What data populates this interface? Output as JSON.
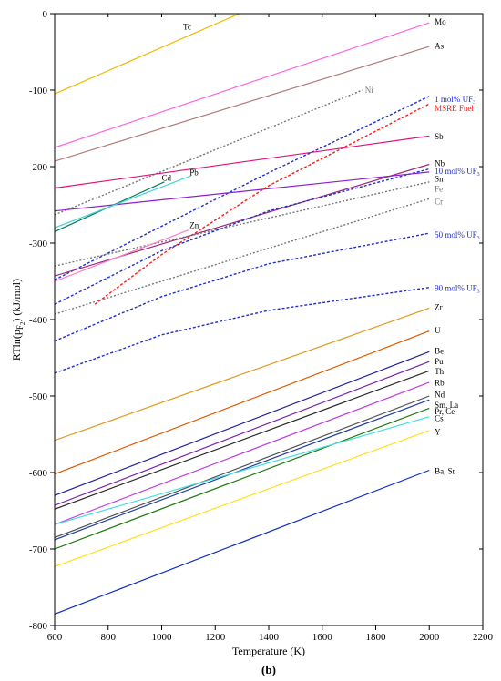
{
  "panel_label": "(b)",
  "chart_data": {
    "type": "line",
    "xlabel": "Temperature (K)",
    "ylabel": "RTln(pF2) (kJ/mol)",
    "xlim": [
      600,
      2200
    ],
    "ylim": [
      -800,
      0
    ],
    "xticks": [
      600,
      800,
      1000,
      1200,
      1400,
      1600,
      1800,
      2000,
      2200
    ],
    "yticks": [
      -800,
      -700,
      -600,
      -500,
      -400,
      -300,
      -200,
      -100,
      0
    ],
    "grid": false,
    "series": [
      {
        "name": "Tc",
        "color": "#f2b800",
        "dash": false,
        "points": [
          [
            600,
            -105
          ],
          [
            1290,
            0
          ]
        ]
      },
      {
        "name": "Mo",
        "color": "#ff66dd",
        "dash": false,
        "points": [
          [
            600,
            -175
          ],
          [
            2000,
            -12
          ]
        ]
      },
      {
        "name": "As",
        "color": "#b07a7a",
        "dash": false,
        "points": [
          [
            600,
            -193
          ],
          [
            2000,
            -43
          ]
        ]
      },
      {
        "name": "Ni",
        "color": "#777777",
        "dash": true,
        "points": [
          [
            600,
            -263
          ],
          [
            1750,
            -100
          ]
        ]
      },
      {
        "name": "1 mol% UF3",
        "color": "#1f2fd0",
        "dash": true,
        "points": [
          [
            600,
            -348
          ],
          [
            1000,
            -278
          ],
          [
            1400,
            -208
          ],
          [
            2000,
            -108
          ]
        ]
      },
      {
        "name": "MSRE Fuel",
        "color": "#ff1a1a",
        "dash": true,
        "points": [
          [
            750,
            -380
          ],
          [
            1000,
            -315
          ],
          [
            1400,
            -225
          ],
          [
            2000,
            -118
          ]
        ]
      },
      {
        "name": "Sb",
        "color": "#e0107a",
        "dash": false,
        "points": [
          [
            600,
            -228
          ],
          [
            2000,
            -160
          ]
        ]
      },
      {
        "name": "Nb",
        "color": "#9b2a7a",
        "dash": false,
        "points": [
          [
            600,
            -343
          ],
          [
            2000,
            -197
          ]
        ]
      },
      {
        "name": "10 mol% UF3",
        "color": "#1f2fd0",
        "dash": true,
        "points": [
          [
            600,
            -380
          ],
          [
            1000,
            -310
          ],
          [
            1400,
            -258
          ],
          [
            2000,
            -203
          ]
        ]
      },
      {
        "name": "Sn",
        "color": "#8a1fd0",
        "dash": false,
        "points": [
          [
            600,
            -258
          ],
          [
            2000,
            -207
          ]
        ]
      },
      {
        "name": "Fe",
        "color": "#777777",
        "dash": true,
        "points": [
          [
            600,
            -330
          ],
          [
            2000,
            -220
          ]
        ]
      },
      {
        "name": "Cr",
        "color": "#777777",
        "dash": true,
        "points": [
          [
            600,
            -393
          ],
          [
            2000,
            -242
          ]
        ]
      },
      {
        "name": "Cd",
        "color": "#0a7a5a",
        "dash": false,
        "points": [
          [
            600,
            -285
          ],
          [
            1010,
            -220
          ]
        ]
      },
      {
        "name": "Pb",
        "color": "#40d4d4",
        "dash": false,
        "points": [
          [
            600,
            -280
          ],
          [
            1110,
            -212
          ]
        ]
      },
      {
        "name": "Zn",
        "color": "#ff80c0",
        "dash": false,
        "points": [
          [
            600,
            -350
          ],
          [
            1100,
            -283
          ]
        ]
      },
      {
        "name": "50 mol% UF3",
        "color": "#1f2fd0",
        "dash": true,
        "points": [
          [
            600,
            -428
          ],
          [
            1000,
            -370
          ],
          [
            1400,
            -327
          ],
          [
            2000,
            -287
          ]
        ]
      },
      {
        "name": "90 mol% UF3",
        "color": "#1f2fd0",
        "dash": true,
        "points": [
          [
            600,
            -470
          ],
          [
            1000,
            -420
          ],
          [
            1400,
            -388
          ],
          [
            2000,
            -358
          ]
        ]
      },
      {
        "name": "Zr",
        "color": "#e09a20",
        "dash": false,
        "points": [
          [
            600,
            -558
          ],
          [
            2000,
            -385
          ]
        ]
      },
      {
        "name": "U",
        "color": "#e05a00",
        "dash": false,
        "points": [
          [
            600,
            -602
          ],
          [
            2000,
            -415
          ]
        ]
      },
      {
        "name": "Be",
        "color": "#20209a",
        "dash": false,
        "points": [
          [
            600,
            -630
          ],
          [
            2000,
            -442
          ]
        ]
      },
      {
        "name": "Pu",
        "color": "#7a20b0",
        "dash": false,
        "points": [
          [
            600,
            -643
          ],
          [
            2000,
            -455
          ]
        ]
      },
      {
        "name": "Th",
        "color": "#2a2a2a",
        "dash": false,
        "points": [
          [
            600,
            -648
          ],
          [
            2000,
            -467
          ]
        ]
      },
      {
        "name": "Rb",
        "color": "#c040e0",
        "dash": false,
        "points": [
          [
            600,
            -668
          ],
          [
            2000,
            -482
          ]
        ]
      },
      {
        "name": "Nd",
        "color": "#505050",
        "dash": false,
        "points": [
          [
            600,
            -685
          ],
          [
            2000,
            -500
          ]
        ]
      },
      {
        "name": "Sm, La",
        "color": "#2040a0",
        "dash": false,
        "points": [
          [
            600,
            -688
          ],
          [
            2000,
            -505
          ]
        ]
      },
      {
        "name": "Pr, Ce",
        "color": "#207a10",
        "dash": false,
        "points": [
          [
            600,
            -700
          ],
          [
            2000,
            -516
          ]
        ]
      },
      {
        "name": "Cs",
        "color": "#40e0e0",
        "dash": false,
        "points": [
          [
            600,
            -668
          ],
          [
            2000,
            -527
          ]
        ]
      },
      {
        "name": "Y",
        "color": "#ffe020",
        "dash": false,
        "points": [
          [
            600,
            -723
          ],
          [
            2000,
            -545
          ]
        ]
      },
      {
        "name": "Ba, Sr",
        "color": "#1030c0",
        "dash": false,
        "points": [
          [
            600,
            -785
          ],
          [
            2000,
            -597
          ]
        ]
      }
    ],
    "labels": [
      {
        "text": "Tc",
        "x": 1080,
        "y": -17,
        "color": "#000000"
      },
      {
        "text": "Mo",
        "x": 2020,
        "y": -11,
        "color": "#000000"
      },
      {
        "text": "As",
        "x": 2020,
        "y": -42,
        "color": "#000000"
      },
      {
        "text": "Ni",
        "x": 1760,
        "y": -100,
        "color": "#777777"
      },
      {
        "text": "1 mol% UF3",
        "x": 2020,
        "y": -112,
        "color": "#1f2fd0"
      },
      {
        "text": "MSRE Fuel",
        "x": 2020,
        "y": -124,
        "color": "#ff1a1a"
      },
      {
        "text": "Sb",
        "x": 2020,
        "y": -161,
        "color": "#000000"
      },
      {
        "text": "Nb",
        "x": 2020,
        "y": -196,
        "color": "#000000"
      },
      {
        "text": "10 mol% UF3",
        "x": 2020,
        "y": -206,
        "color": "#1f2fd0"
      },
      {
        "text": "Sn",
        "x": 2020,
        "y": -216,
        "color": "#000000"
      },
      {
        "text": "Fe",
        "x": 2020,
        "y": -229,
        "color": "#777777"
      },
      {
        "text": "Cr",
        "x": 2020,
        "y": -246,
        "color": "#777777"
      },
      {
        "text": "Cd",
        "x": 1000,
        "y": -215,
        "color": "#000000"
      },
      {
        "text": "Pb",
        "x": 1105,
        "y": -208,
        "color": "#000000"
      },
      {
        "text": "Zn",
        "x": 1105,
        "y": -277,
        "color": "#000000"
      },
      {
        "text": "50 mol% UF3",
        "x": 2020,
        "y": -289,
        "color": "#1f2fd0"
      },
      {
        "text": "90 mol% UF3",
        "x": 2020,
        "y": -359,
        "color": "#1f2fd0"
      },
      {
        "text": "Zr",
        "x": 2020,
        "y": -384,
        "color": "#000000"
      },
      {
        "text": "U",
        "x": 2020,
        "y": -414,
        "color": "#000000"
      },
      {
        "text": "Be",
        "x": 2020,
        "y": -441,
        "color": "#000000"
      },
      {
        "text": "Pu",
        "x": 2020,
        "y": -455,
        "color": "#000000"
      },
      {
        "text": "Th",
        "x": 2020,
        "y": -468,
        "color": "#000000"
      },
      {
        "text": "Rb",
        "x": 2020,
        "y": -483,
        "color": "#000000"
      },
      {
        "text": "Nd",
        "x": 2020,
        "y": -498,
        "color": "#000000"
      },
      {
        "text": "Sm, La",
        "x": 2020,
        "y": -512,
        "color": "#000000"
      },
      {
        "text": "Pr, Ce",
        "x": 2020,
        "y": -520,
        "color": "#000000"
      },
      {
        "text": "Cs",
        "x": 2020,
        "y": -529,
        "color": "#000000"
      },
      {
        "text": "Y",
        "x": 2020,
        "y": -547,
        "color": "#000000"
      },
      {
        "text": "Ba, Sr",
        "x": 2020,
        "y": -598,
        "color": "#000000"
      }
    ]
  }
}
